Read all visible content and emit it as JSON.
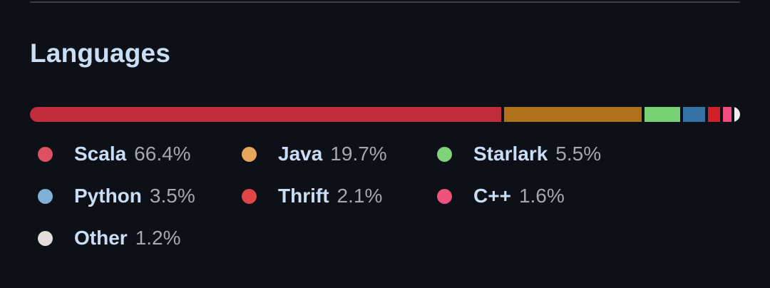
{
  "section": {
    "title": "Languages"
  },
  "languages": [
    {
      "name": "Scala",
      "percent": 66.4,
      "percent_label": "66.4%",
      "bar_color": "#c32b3e",
      "dot_color": "#de4f60"
    },
    {
      "name": "Java",
      "percent": 19.7,
      "percent_label": "19.7%",
      "bar_color": "#b07219",
      "dot_color": "#e5a75a"
    },
    {
      "name": "Starlark",
      "percent": 5.5,
      "percent_label": "5.5%",
      "bar_color": "#76d275",
      "dot_color": "#7fd47a"
    },
    {
      "name": "Python",
      "percent": 3.5,
      "percent_label": "3.5%",
      "bar_color": "#3572a5",
      "dot_color": "#7fb0d8"
    },
    {
      "name": "Thrift",
      "percent": 2.1,
      "percent_label": "2.1%",
      "bar_color": "#d12127",
      "dot_color": "#e04548"
    },
    {
      "name": "C++",
      "percent": 1.6,
      "percent_label": "1.6%",
      "bar_color": "#f34b7d",
      "dot_color": "#f0527f"
    },
    {
      "name": "Other",
      "percent": 1.2,
      "percent_label": "1.2%",
      "bar_color": "#ededed",
      "dot_color": "#e2ddd8"
    }
  ]
}
